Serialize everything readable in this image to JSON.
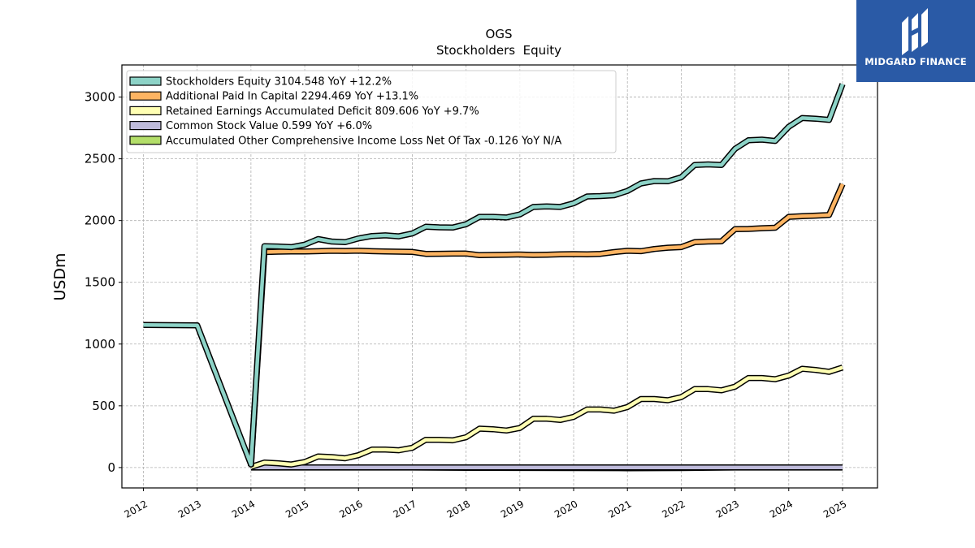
{
  "brand": {
    "name": "MIDGARD FINANCE",
    "color": "#2a5aa6"
  },
  "chart_data": {
    "type": "line",
    "title": "OGS",
    "subtitle": "Stockholders  Equity",
    "xlabel": "",
    "ylabel": "USDm",
    "xlim": [
      2011.6,
      2025.65
    ],
    "ylim": [
      -165,
      3260
    ],
    "x_ticks": [
      2012,
      2013,
      2014,
      2015,
      2016,
      2017,
      2018,
      2019,
      2020,
      2021,
      2022,
      2023,
      2024,
      2025
    ],
    "x_tick_labels": [
      "2012",
      "2013",
      "2014",
      "2015",
      "2016",
      "2017",
      "2018",
      "2019",
      "2020",
      "2021",
      "2022",
      "2023",
      "2024",
      "2025"
    ],
    "y_ticks": [
      0,
      500,
      1000,
      1500,
      2000,
      2500,
      3000
    ],
    "y_tick_labels": [
      "0",
      "500",
      "1000",
      "1500",
      "2000",
      "2500",
      "3000"
    ],
    "grid": true,
    "legend_position": "top-left",
    "series": [
      {
        "name": "Stockholders Equity  3104.548 YoY +12.2%",
        "color": "#8dd3c7",
        "x": [
          2012.0,
          2013.0,
          2014.0,
          2014.25,
          2014.5,
          2014.75,
          2015.0,
          2015.25,
          2015.5,
          2015.75,
          2016.0,
          2016.25,
          2016.5,
          2016.75,
          2017.0,
          2017.25,
          2017.5,
          2017.75,
          2018.0,
          2018.25,
          2018.5,
          2018.75,
          2019.0,
          2019.25,
          2019.5,
          2019.75,
          2020.0,
          2020.25,
          2020.5,
          2020.75,
          2021.0,
          2021.25,
          2021.5,
          2021.75,
          2022.0,
          2022.25,
          2022.5,
          2022.75,
          2023.0,
          2023.25,
          2023.5,
          2023.75,
          2024.0,
          2024.25,
          2024.5,
          2024.75,
          2025.0
        ],
        "y": [
          1155,
          1152,
          25,
          1793,
          1790,
          1785,
          1805,
          1850,
          1830,
          1825,
          1855,
          1875,
          1880,
          1872,
          1895,
          1950,
          1945,
          1943,
          1970,
          2030,
          2030,
          2025,
          2050,
          2110,
          2115,
          2110,
          2140,
          2195,
          2198,
          2205,
          2240,
          2300,
          2320,
          2318,
          2350,
          2450,
          2455,
          2450,
          2580,
          2650,
          2655,
          2645,
          2760,
          2830,
          2825,
          2815,
          3105
        ]
      },
      {
        "name": "Additional Paid In Capital  2294.469 YoY +13.1%",
        "color": "#fdb462",
        "x": [
          2014.0,
          2014.25,
          2014.5,
          2014.75,
          2015.0,
          2015.25,
          2015.5,
          2015.75,
          2016.0,
          2016.25,
          2016.5,
          2016.75,
          2017.0,
          2017.25,
          2017.5,
          2017.75,
          2018.0,
          2018.25,
          2018.5,
          2018.75,
          2019.0,
          2019.25,
          2019.5,
          2019.75,
          2020.0,
          2020.25,
          2020.5,
          2020.75,
          2021.0,
          2021.25,
          2021.5,
          2021.75,
          2022.0,
          2022.25,
          2022.5,
          2022.75,
          2023.0,
          2023.25,
          2023.5,
          2023.75,
          2024.0,
          2024.25,
          2024.5,
          2024.75,
          2025.0
        ],
        "y": [
          10,
          1745,
          1748,
          1750,
          1750,
          1752,
          1755,
          1754,
          1756,
          1752,
          1750,
          1748,
          1746,
          1730,
          1731,
          1732,
          1733,
          1720,
          1722,
          1724,
          1725,
          1722,
          1724,
          1726,
          1728,
          1727,
          1730,
          1745,
          1755,
          1752,
          1770,
          1780,
          1785,
          1825,
          1830,
          1832,
          1930,
          1932,
          1938,
          1942,
          2030,
          2035,
          2040,
          2045,
          2295
        ]
      },
      {
        "name": "Retained Earnings Accumulated Deficit  809.606 YoY +9.7%",
        "color": "#ffffb3",
        "x": [
          2014.0,
          2014.25,
          2014.5,
          2014.75,
          2015.0,
          2015.25,
          2015.5,
          2015.75,
          2016.0,
          2016.25,
          2016.5,
          2016.75,
          2017.0,
          2017.25,
          2017.5,
          2017.75,
          2018.0,
          2018.25,
          2018.5,
          2018.75,
          2019.0,
          2019.25,
          2019.5,
          2019.75,
          2020.0,
          2020.25,
          2020.5,
          2020.75,
          2021.0,
          2021.25,
          2021.5,
          2021.75,
          2022.0,
          2022.25,
          2022.5,
          2022.75,
          2023.0,
          2023.25,
          2023.5,
          2023.75,
          2024.0,
          2024.25,
          2024.5,
          2024.75,
          2025.0
        ],
        "y": [
          5,
          40,
          35,
          25,
          45,
          90,
          85,
          75,
          100,
          145,
          145,
          140,
          160,
          225,
          225,
          220,
          245,
          315,
          310,
          300,
          320,
          395,
          395,
          385,
          410,
          470,
          470,
          460,
          490,
          555,
          555,
          545,
          570,
          635,
          635,
          625,
          655,
          725,
          725,
          715,
          745,
          800,
          790,
          775,
          810
        ]
      },
      {
        "name": "Common Stock Value  0.599 YoY +6.0%",
        "color": "#bebada",
        "x": [
          2014.0,
          2015.0,
          2016.0,
          2017.0,
          2018.0,
          2019.0,
          2020.0,
          2021.0,
          2022.0,
          2023.0,
          2024.0,
          2025.0
        ],
        "y": [
          0.5,
          0.5,
          0.5,
          0.5,
          0.5,
          0.5,
          0.5,
          0.5,
          0.5,
          0.6,
          0.6,
          0.6
        ]
      },
      {
        "name": "Accumulated Other Comprehensive Income Loss Net Of Tax  -0.126 YoY N/A",
        "color": "#b3de69",
        "x": [
          2014.0,
          2015.0,
          2016.0,
          2017.0,
          2018.0,
          2019.0,
          2020.0,
          2021.0,
          2022.0,
          2023.0,
          2024.0,
          2025.0
        ],
        "y": [
          0,
          0,
          0,
          0,
          -2,
          -3,
          -4,
          -5,
          -4,
          0,
          0,
          -0.1
        ]
      }
    ]
  }
}
